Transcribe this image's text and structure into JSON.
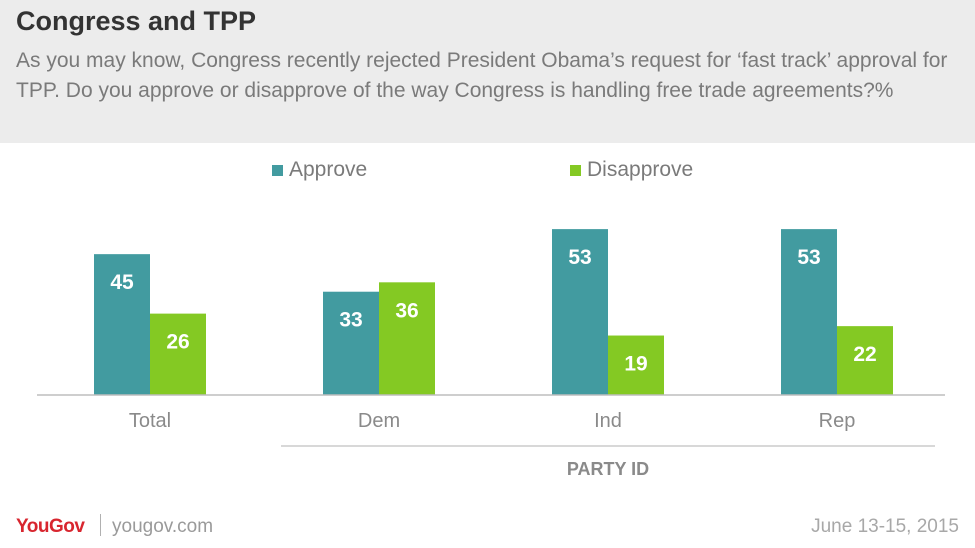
{
  "header": {
    "title": "Congress and TPP",
    "subtitle": "As you may know, Congress recently rejected President Obama’s request for ‘fast track’ approval for TPP. Do you approve or disapprove of the way Congress is handling  free trade agreements?%"
  },
  "colors": {
    "approve": "#429ba0",
    "disapprove": "#84c923",
    "header_bg": "#ececec",
    "brand": "#d8262f"
  },
  "chart_data": {
    "type": "bar",
    "title": "Congress and TPP",
    "categories": [
      "Total",
      "Dem",
      "Ind",
      "Rep"
    ],
    "series": [
      {
        "name": "Approve",
        "values": [
          45,
          33,
          53,
          53
        ]
      },
      {
        "name": "Disapprove",
        "values": [
          26,
          36,
          19,
          22
        ]
      }
    ],
    "group_label": "PARTY ID",
    "grouped_categories": [
      "Dem",
      "Ind",
      "Rep"
    ],
    "ylim": [
      0,
      55
    ],
    "grid": false,
    "legend_position": "top-center"
  },
  "footer": {
    "brand": "YouGov",
    "site": "yougov.com",
    "date": "June 13-15, 2015"
  }
}
